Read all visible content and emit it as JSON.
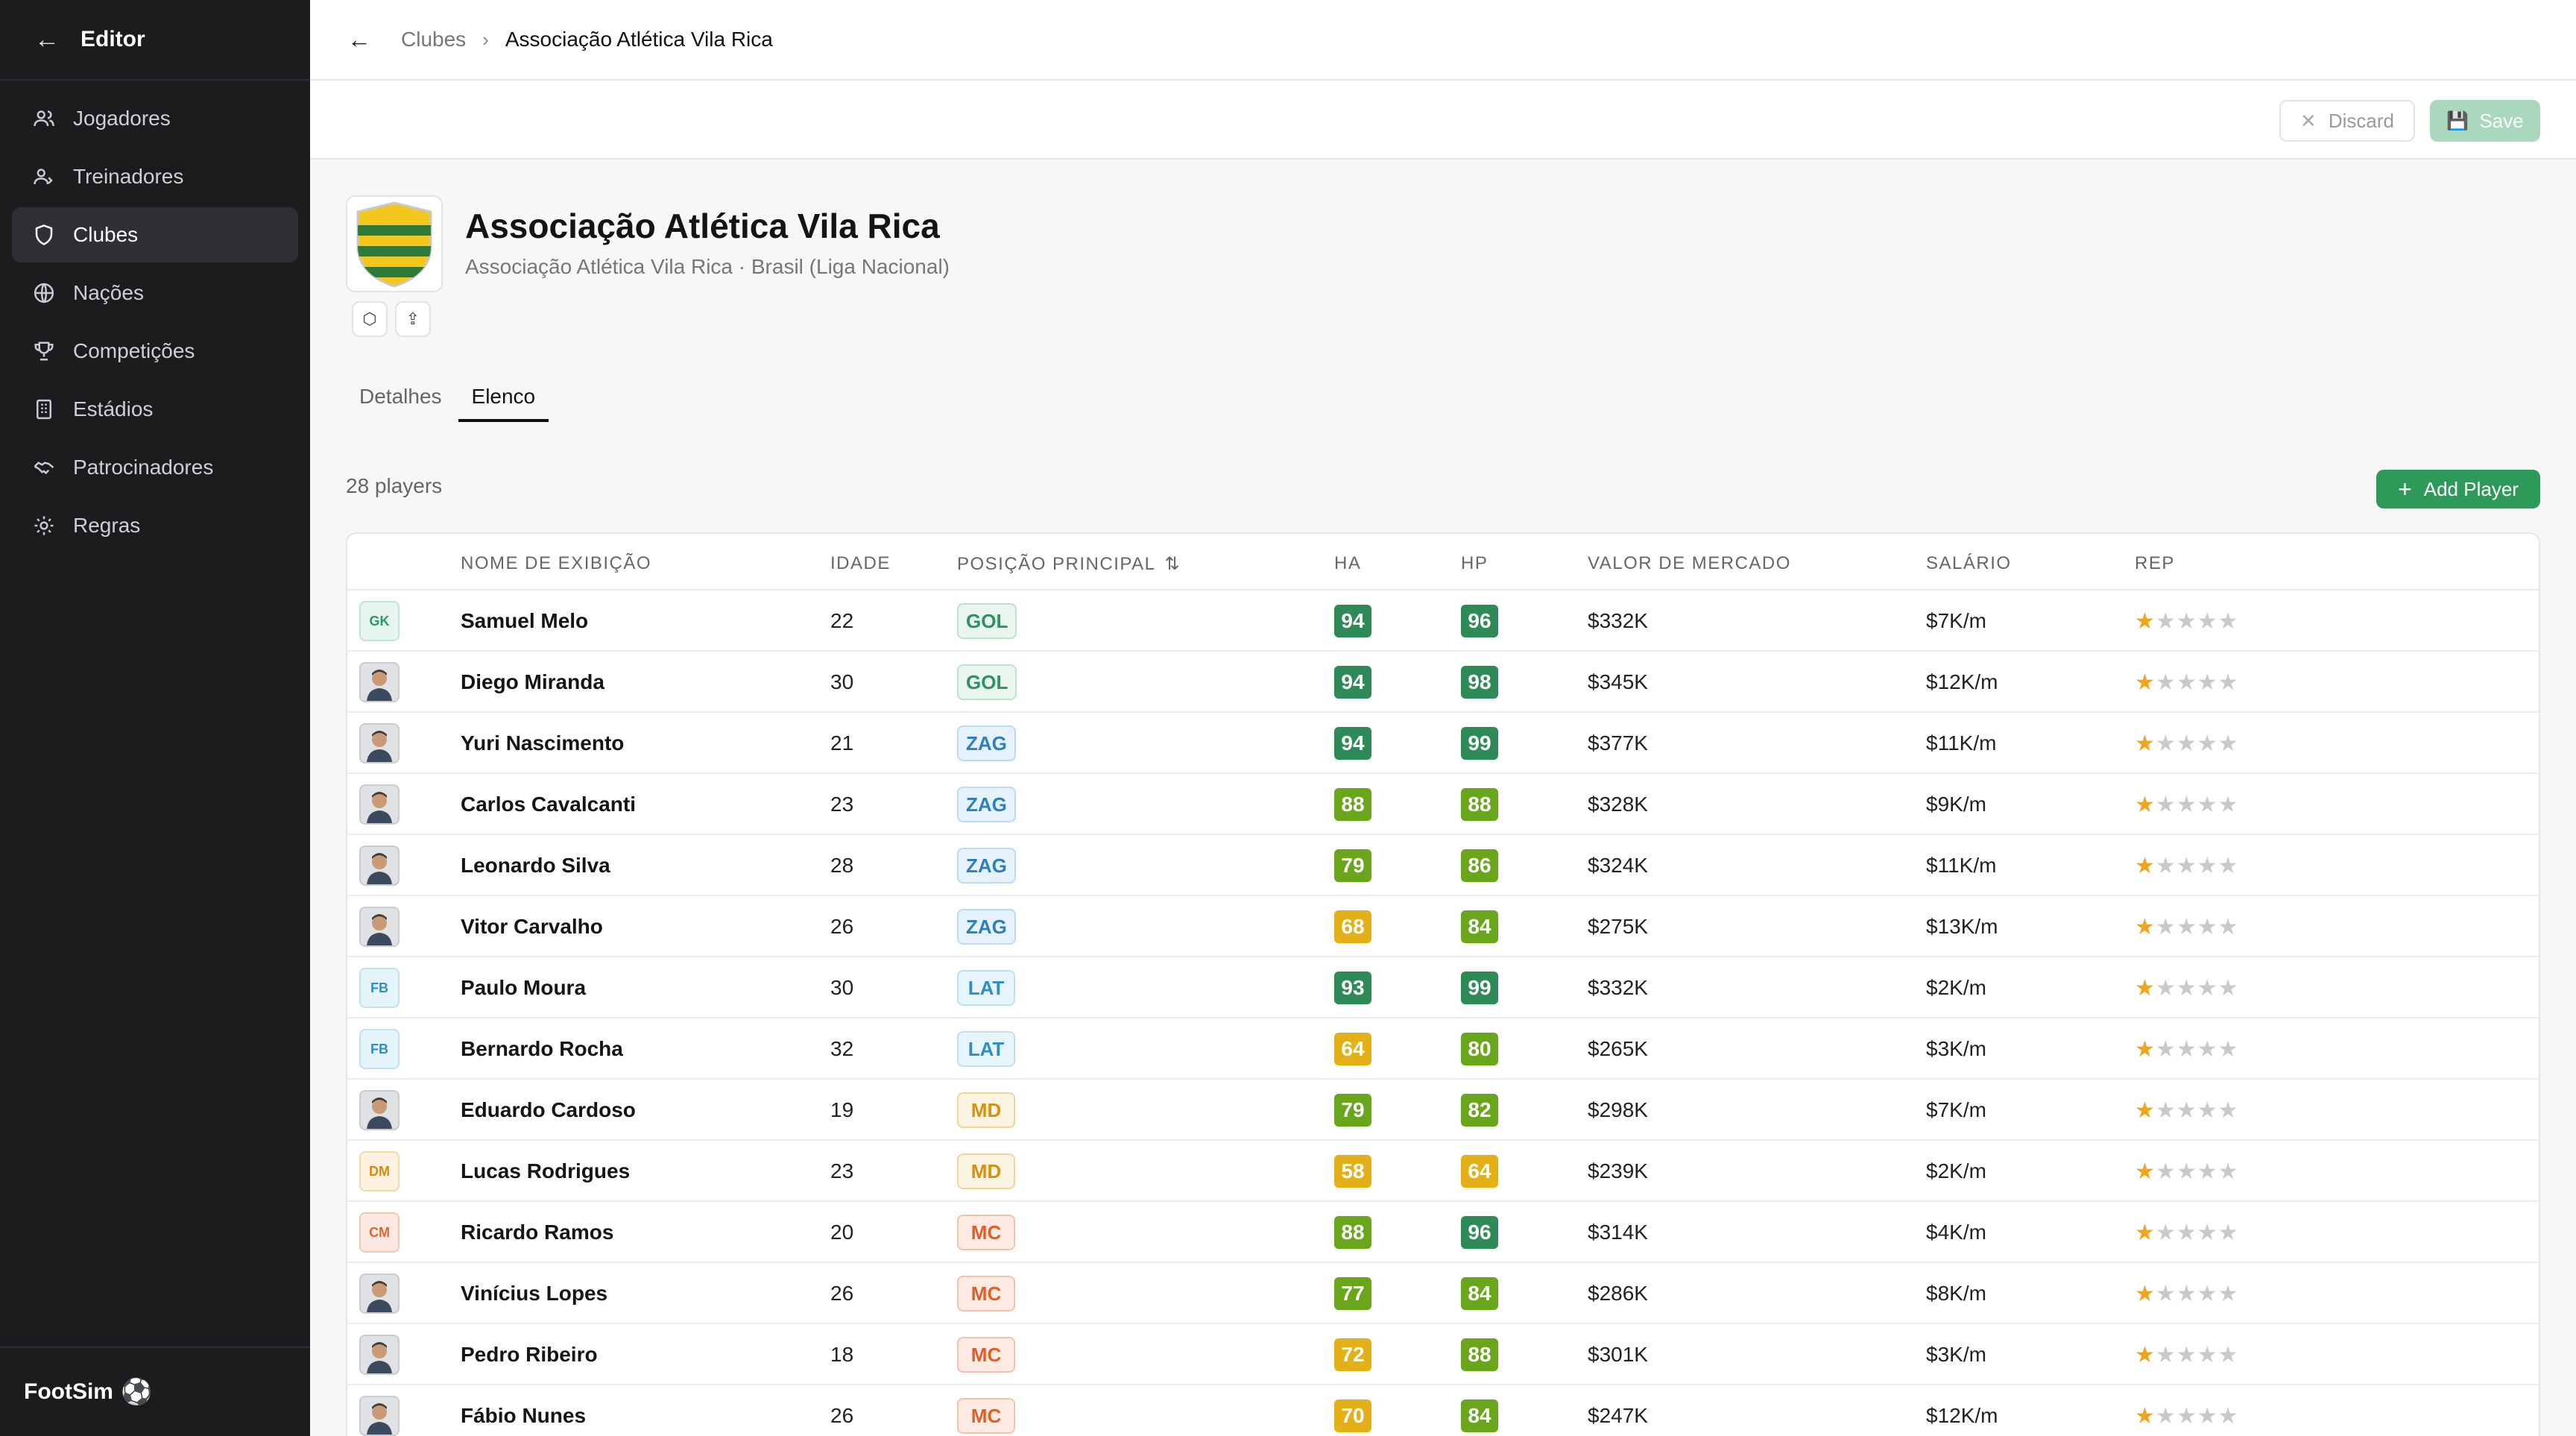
{
  "sidebar": {
    "title": "Editor",
    "items": [
      {
        "label": "Jogadores",
        "icon": "users-icon"
      },
      {
        "label": "Treinadores",
        "icon": "coach-icon"
      },
      {
        "label": "Clubes",
        "icon": "shield-icon"
      },
      {
        "label": "Nações",
        "icon": "globe-icon"
      },
      {
        "label": "Competições",
        "icon": "trophy-icon"
      },
      {
        "label": "Estádios",
        "icon": "building-icon"
      },
      {
        "label": "Patrocinadores",
        "icon": "handshake-icon"
      },
      {
        "label": "Regras",
        "icon": "gear-icon"
      }
    ],
    "active_item": "Clubes",
    "brand": "FootSim"
  },
  "breadcrumb": {
    "parent": "Clubes",
    "current": "Associação Atlética Vila Rica"
  },
  "actions": {
    "discard": "Discard",
    "save": "Save"
  },
  "club": {
    "name": "Associação Atlética Vila Rica",
    "subtitle": "Associação Atlética Vila Rica · Brasil (Liga Nacional)",
    "crest_colors": [
      "#f2c81e",
      "#2f7a3a"
    ]
  },
  "tabs": [
    {
      "label": "Detalhes",
      "active": false
    },
    {
      "label": "Elenco",
      "active": true
    }
  ],
  "squad": {
    "count_text": "28 players",
    "add_button": "Add Player",
    "columns": {
      "name": "NOME DE EXIBIÇÃO",
      "age": "IDADE",
      "position": "POSIÇÃO PRINCIPAL",
      "ha": "HA",
      "hp": "HP",
      "value": "VALOR DE MERCADO",
      "salary": "SALÁRIO",
      "rep": "REP"
    },
    "rows": [
      {
        "avatar": "GK",
        "name": "Samuel Melo",
        "age": "22",
        "pos": "GOL",
        "ha": "94",
        "ha_c": "dg",
        "hp": "96",
        "hp_c": "dg",
        "value": "$332K",
        "salary": "$7K/m",
        "rep": 1
      },
      {
        "avatar": "photo",
        "name": "Diego Miranda",
        "age": "30",
        "pos": "GOL",
        "ha": "94",
        "ha_c": "dg",
        "hp": "98",
        "hp_c": "dg",
        "value": "$345K",
        "salary": "$12K/m",
        "rep": 1
      },
      {
        "avatar": "photo",
        "name": "Yuri Nascimento",
        "age": "21",
        "pos": "ZAG",
        "ha": "94",
        "ha_c": "dg",
        "hp": "99",
        "hp_c": "dg",
        "value": "$377K",
        "salary": "$11K/m",
        "rep": 1
      },
      {
        "avatar": "photo",
        "name": "Carlos Cavalcanti",
        "age": "23",
        "pos": "ZAG",
        "ha": "88",
        "ha_c": "lg",
        "hp": "88",
        "hp_c": "lg",
        "value": "$328K",
        "salary": "$9K/m",
        "rep": 1
      },
      {
        "avatar": "photo",
        "name": "Leonardo Silva",
        "age": "28",
        "pos": "ZAG",
        "ha": "79",
        "ha_c": "lg",
        "hp": "86",
        "hp_c": "lg",
        "value": "$324K",
        "salary": "$11K/m",
        "rep": 1
      },
      {
        "avatar": "photo",
        "name": "Vitor Carvalho",
        "age": "26",
        "pos": "ZAG",
        "ha": "68",
        "ha_c": "yl",
        "hp": "84",
        "hp_c": "lg",
        "value": "$275K",
        "salary": "$13K/m",
        "rep": 1
      },
      {
        "avatar": "FB",
        "name": "Paulo Moura",
        "age": "30",
        "pos": "LAT",
        "ha": "93",
        "ha_c": "dg",
        "hp": "99",
        "hp_c": "dg",
        "value": "$332K",
        "salary": "$2K/m",
        "rep": 1
      },
      {
        "avatar": "FB",
        "name": "Bernardo Rocha",
        "age": "32",
        "pos": "LAT",
        "ha": "64",
        "ha_c": "yl",
        "hp": "80",
        "hp_c": "lg",
        "value": "$265K",
        "salary": "$3K/m",
        "rep": 1
      },
      {
        "avatar": "photo",
        "name": "Eduardo Cardoso",
        "age": "19",
        "pos": "MD",
        "ha": "79",
        "ha_c": "lg",
        "hp": "82",
        "hp_c": "lg",
        "value": "$298K",
        "salary": "$7K/m",
        "rep": 1
      },
      {
        "avatar": "DM",
        "name": "Lucas Rodrigues",
        "age": "23",
        "pos": "MD",
        "ha": "58",
        "ha_c": "yl",
        "hp": "64",
        "hp_c": "yl",
        "value": "$239K",
        "salary": "$2K/m",
        "rep": 1
      },
      {
        "avatar": "CM",
        "name": "Ricardo Ramos",
        "age": "20",
        "pos": "MC",
        "ha": "88",
        "ha_c": "lg",
        "hp": "96",
        "hp_c": "dg",
        "value": "$314K",
        "salary": "$4K/m",
        "rep": 1
      },
      {
        "avatar": "photo",
        "name": "Vinícius Lopes",
        "age": "26",
        "pos": "MC",
        "ha": "77",
        "ha_c": "lg",
        "hp": "84",
        "hp_c": "lg",
        "value": "$286K",
        "salary": "$8K/m",
        "rep": 1
      },
      {
        "avatar": "photo",
        "name": "Pedro Ribeiro",
        "age": "18",
        "pos": "MC",
        "ha": "72",
        "ha_c": "yl",
        "hp": "88",
        "hp_c": "lg",
        "value": "$301K",
        "salary": "$3K/m",
        "rep": 1
      },
      {
        "avatar": "photo",
        "name": "Fábio Nunes",
        "age": "26",
        "pos": "MC",
        "ha": "70",
        "ha_c": "yl",
        "hp": "84",
        "hp_c": "lg",
        "value": "$247K",
        "salary": "$12K/m",
        "rep": 1
      }
    ]
  }
}
